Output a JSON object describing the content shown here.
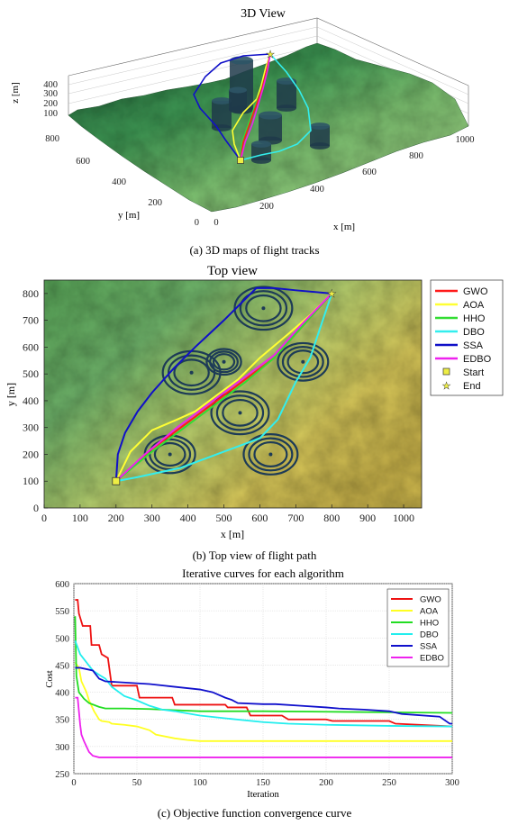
{
  "panel_a": {
    "title": "3D View",
    "caption": "(a) 3D maps of flight tracks",
    "xlabel": "x [m]",
    "ylabel": "y [m]",
    "zlabel": "z [m]",
    "xticks": [
      "0",
      "200",
      "400",
      "600",
      "800",
      "1000"
    ],
    "yticks": [
      "0",
      "200",
      "400",
      "600",
      "800"
    ],
    "zticks": [
      "100",
      "200",
      "300",
      "400"
    ]
  },
  "panel_b": {
    "title": "Top view",
    "caption": "(b) Top view of flight path",
    "xlabel": "x [m]",
    "ylabel": "y [m]",
    "xticks": [
      "0",
      "100",
      "200",
      "300",
      "400",
      "500",
      "600",
      "700",
      "800",
      "900",
      "1000"
    ],
    "yticks": [
      "0",
      "100",
      "200",
      "300",
      "400",
      "500",
      "600",
      "700",
      "800"
    ],
    "legend": [
      {
        "name": "GWO",
        "color": "#ff1a1a",
        "kind": "line"
      },
      {
        "name": "AOA",
        "color": "#ffff33",
        "kind": "line"
      },
      {
        "name": "HHO",
        "color": "#33dd33",
        "kind": "line"
      },
      {
        "name": "DBO",
        "color": "#33eeee",
        "kind": "line"
      },
      {
        "name": "SSA",
        "color": "#1010c8",
        "kind": "line"
      },
      {
        "name": "EDBO",
        "color": "#ee22ee",
        "kind": "line"
      },
      {
        "name": "Start",
        "color": "#eeee44",
        "kind": "square"
      },
      {
        "name": "End",
        "color": "#eeee44",
        "kind": "star"
      }
    ],
    "obstacles": [
      {
        "x": 610,
        "y": 745,
        "r": 80
      },
      {
        "x": 500,
        "y": 545,
        "r": 48
      },
      {
        "x": 410,
        "y": 505,
        "r": 80
      },
      {
        "x": 720,
        "y": 545,
        "r": 70
      },
      {
        "x": 545,
        "y": 355,
        "r": 80
      },
      {
        "x": 350,
        "y": 200,
        "r": 70
      },
      {
        "x": 630,
        "y": 200,
        "r": 75
      }
    ],
    "start": [
      200,
      100
    ],
    "end": [
      800,
      800
    ]
  },
  "chart_data": {
    "type": "line",
    "title": "Iterative curves for each algorithm",
    "caption": "(c) Objective function convergence curve",
    "xlabel": "Iteration",
    "ylabel": "Cost",
    "xlim": [
      0,
      300
    ],
    "ylim": [
      250,
      600
    ],
    "xticks": [
      0,
      50,
      100,
      150,
      200,
      250,
      300
    ],
    "yticks": [
      250,
      300,
      350,
      400,
      450,
      500,
      550,
      600
    ],
    "grid": true,
    "legend_position": "top-right",
    "series": [
      {
        "name": "GWO",
        "color": "#ee1111",
        "x": [
          1,
          3,
          4,
          7,
          13,
          14,
          20,
          22,
          27,
          30,
          50,
          52,
          78,
          80,
          120,
          122,
          137,
          140,
          165,
          170,
          200,
          205,
          250,
          255,
          300
        ],
        "y": [
          570,
          570,
          545,
          522,
          522,
          487,
          487,
          470,
          463,
          412,
          412,
          390,
          390,
          377,
          377,
          372,
          372,
          357,
          357,
          350,
          350,
          347,
          347,
          342,
          337
        ]
      },
      {
        "name": "AOA",
        "color": "#ffff22",
        "x": [
          1,
          4,
          6,
          10,
          12,
          16,
          20,
          22,
          28,
          30,
          40,
          50,
          60,
          65,
          80,
          90,
          100,
          150,
          200,
          250,
          300
        ],
        "y": [
          455,
          445,
          420,
          400,
          385,
          365,
          350,
          347,
          345,
          342,
          340,
          337,
          330,
          322,
          315,
          312,
          310,
          310,
          310,
          310,
          310
        ]
      },
      {
        "name": "HHO",
        "color": "#22dd22",
        "x": [
          1,
          2,
          4,
          8,
          12,
          20,
          25,
          40,
          60,
          80,
          100,
          150,
          200,
          250,
          300
        ],
        "y": [
          540,
          430,
          400,
          388,
          380,
          373,
          370,
          370,
          369,
          367,
          365,
          365,
          364,
          363,
          362
        ]
      },
      {
        "name": "DBO",
        "color": "#22eeee",
        "x": [
          1,
          5,
          10,
          15,
          20,
          25,
          30,
          40,
          50,
          60,
          70,
          80,
          100,
          120,
          150,
          170,
          200,
          250,
          300
        ],
        "y": [
          495,
          470,
          455,
          440,
          432,
          425,
          410,
          393,
          385,
          375,
          368,
          365,
          357,
          352,
          345,
          342,
          340,
          338,
          337
        ]
      },
      {
        "name": "SSA",
        "color": "#1010cc",
        "x": [
          1,
          5,
          15,
          20,
          25,
          60,
          80,
          100,
          110,
          120,
          125,
          130,
          150,
          160,
          180,
          200,
          210,
          230,
          250,
          260,
          290,
          298,
          300
        ],
        "y": [
          445,
          445,
          440,
          425,
          420,
          415,
          410,
          405,
          400,
          390,
          386,
          380,
          378,
          378,
          375,
          372,
          370,
          368,
          365,
          360,
          355,
          342,
          342
        ]
      },
      {
        "name": "EDBO",
        "color": "#ee22ee",
        "x": [
          1,
          3,
          4,
          5,
          6,
          8,
          10,
          12,
          15,
          20,
          300
        ],
        "y": [
          390,
          390,
          365,
          340,
          322,
          310,
          300,
          290,
          283,
          280,
          280
        ]
      }
    ]
  }
}
